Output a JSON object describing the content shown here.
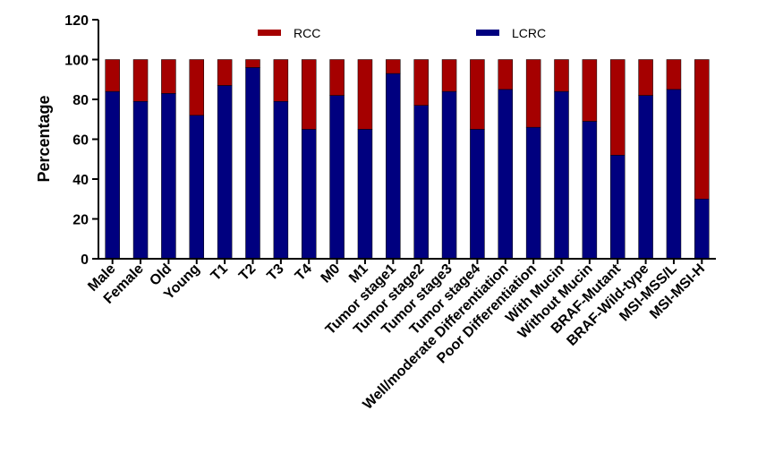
{
  "chart_data": {
    "type": "bar",
    "stacked": true,
    "title": "",
    "xlabel": "",
    "ylabel": "Percentage",
    "ylim": [
      0,
      120
    ],
    "yticks": [
      0,
      20,
      40,
      60,
      80,
      100,
      120
    ],
    "legend_position": "top",
    "grid": false,
    "categories": [
      "Male",
      "Female",
      "Old",
      "Young",
      "T1",
      "T2",
      "T3",
      "T4",
      "M0",
      "M1",
      "Tumor stage1",
      "Tumor stage2",
      "Tumor stage3",
      "Tumor stage4",
      "Well/moderate Differentiation",
      "Poor Differentiation",
      "With Mucin",
      "Without Mucin",
      "BRAF-Mutant",
      "BRAF-Wild-type",
      "MSI-MSS/L",
      "MSI-MSI-H"
    ],
    "series": [
      {
        "name": "LCRC",
        "color": "#00007f",
        "values": [
          84,
          79,
          83,
          72,
          87,
          96,
          79,
          65,
          82,
          65,
          93,
          77,
          84,
          65,
          85,
          66,
          84,
          69,
          52,
          82,
          85,
          30
        ]
      },
      {
        "name": "RCC",
        "color": "#a50000",
        "values": [
          16,
          21,
          17,
          28,
          13,
          4,
          21,
          35,
          18,
          35,
          7,
          23,
          16,
          35,
          15,
          34,
          16,
          31,
          48,
          18,
          15,
          70
        ]
      }
    ]
  }
}
